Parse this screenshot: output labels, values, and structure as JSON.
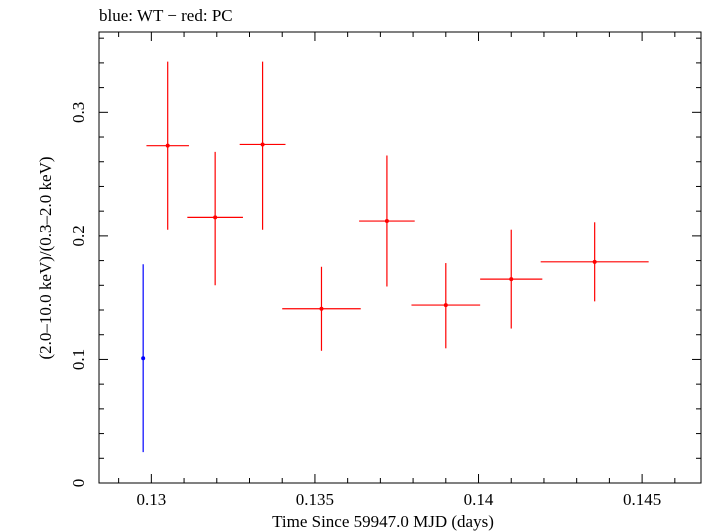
{
  "chart_data": {
    "type": "scatter",
    "title": "blue: WT − red: PC",
    "xlabel": "Time Since 59947.0 MJD (days)",
    "ylabel": "(2.0–10.0 keV)/(0.3–2.0 keV)",
    "xlim": [
      0.1284,
      0.1468
    ],
    "ylim": [
      0,
      0.365
    ],
    "xticks": [
      0.13,
      0.135,
      0.14,
      0.145
    ],
    "xtick_labels": [
      "0.13",
      "0.135",
      "0.14",
      "0.145"
    ],
    "yticks": [
      0,
      0.1,
      0.2,
      0.3
    ],
    "ytick_labels": [
      "0",
      "0.1",
      "0.2",
      "0.3"
    ],
    "grid": false,
    "series": [
      {
        "name": "WT",
        "color": "#0000ff",
        "points": [
          {
            "x": 0.12975,
            "xerr": 0.0,
            "y": 0.101,
            "ylo": 0.025,
            "yhi": 0.177
          }
        ]
      },
      {
        "name": "PC",
        "color": "#ff0000",
        "points": [
          {
            "x": 0.1305,
            "xerr": 0.00065,
            "y": 0.273,
            "ylo": 0.205,
            "yhi": 0.341
          },
          {
            "x": 0.13195,
            "xerr": 0.00085,
            "y": 0.215,
            "ylo": 0.16,
            "yhi": 0.268
          },
          {
            "x": 0.1334,
            "xerr": 0.0007,
            "y": 0.274,
            "ylo": 0.205,
            "yhi": 0.341
          },
          {
            "x": 0.1352,
            "xerr": 0.0012,
            "y": 0.141,
            "ylo": 0.107,
            "yhi": 0.175
          },
          {
            "x": 0.1372,
            "xerr": 0.00085,
            "y": 0.212,
            "ylo": 0.159,
            "yhi": 0.265
          },
          {
            "x": 0.139,
            "xerr": 0.00105,
            "y": 0.144,
            "ylo": 0.109,
            "yhi": 0.178
          },
          {
            "x": 0.141,
            "xerr": 0.00095,
            "y": 0.165,
            "ylo": 0.125,
            "yhi": 0.205
          },
          {
            "x": 0.14355,
            "xerr": 0.00165,
            "y": 0.179,
            "ylo": 0.147,
            "yhi": 0.211
          }
        ]
      }
    ]
  }
}
